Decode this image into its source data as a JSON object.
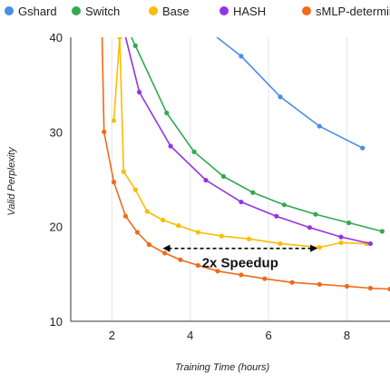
{
  "chart_data": {
    "type": "line",
    "xlabel": "Training Time (hours)",
    "ylabel": "Valid Perplexity",
    "xlim": [
      0.95,
      9.1
    ],
    "ylim": [
      10,
      40
    ],
    "xticks": [
      2,
      4,
      6,
      8
    ],
    "yticks": [
      10,
      20,
      30,
      40
    ],
    "grid": "vertical",
    "legend_position": "top",
    "series": [
      {
        "name": "Gshard",
        "color": "#4a8ee6",
        "x": [
          4.68,
          5.3,
          6.3,
          7.3,
          8.4
        ],
        "y": [
          40.0,
          38.0,
          33.7,
          30.6,
          28.3
        ]
      },
      {
        "name": "Switch",
        "color": "#34a853",
        "x": [
          2.5,
          2.6,
          3.4,
          4.1,
          4.85,
          5.6,
          6.4,
          7.2,
          8.05,
          8.9
        ],
        "y": [
          40.0,
          39.1,
          32.0,
          27.9,
          25.3,
          23.6,
          22.3,
          21.3,
          20.4,
          19.5
        ]
      },
      {
        "name": "Base",
        "color": "#fbbc04",
        "x": [
          2.2,
          2.3,
          2.6,
          2.9,
          3.3,
          3.7,
          4.2,
          4.8,
          5.5,
          6.3,
          7.3,
          7.85,
          8.5
        ],
        "y": [
          40.0,
          25.8,
          23.9,
          21.6,
          20.7,
          20.1,
          19.4,
          19.0,
          18.7,
          18.2,
          17.8,
          18.3,
          18.2
        ]
      },
      {
        "name": "HASH",
        "color": "#9334e6",
        "x": [
          2.35,
          2.7,
          3.5,
          4.4,
          5.3,
          6.2,
          7.05,
          7.85,
          8.6
        ],
        "y": [
          40.0,
          34.2,
          28.5,
          24.9,
          22.6,
          21.1,
          19.9,
          18.9,
          18.2
        ]
      },
      {
        "name": "sMLP-deterministic",
        "color": "#f06a1a",
        "x": [
          1.75,
          2.05,
          2.35,
          2.65,
          2.95,
          3.35,
          3.75,
          4.2,
          4.7,
          5.3,
          5.9,
          6.6,
          7.3,
          8.0,
          8.6,
          9.1
        ],
        "y": [
          40.0,
          24.7,
          21.1,
          19.4,
          18.1,
          17.2,
          16.5,
          15.9,
          15.3,
          14.9,
          14.5,
          14.1,
          13.9,
          13.7,
          13.5,
          13.4
        ]
      }
    ],
    "series_extra_points": [
      {
        "name": "Base",
        "x": [
          2.05
        ],
        "y": [
          31.2
        ]
      },
      {
        "name": "sMLP-deterministic",
        "x": [
          1.8
        ],
        "y": [
          30.0
        ]
      }
    ],
    "annotation": {
      "text": "2x Speedup",
      "x_from": 3.3,
      "x_to": 7.25,
      "y": 17.7
    }
  }
}
